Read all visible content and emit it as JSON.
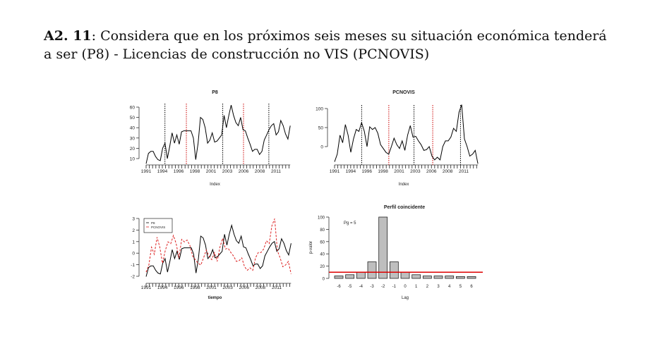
{
  "heading": {
    "number": "A2. 11",
    "text": ": Considera que en los próximos seis meses su situación económica tenderá a ser (P8) - Licencias de construcción no VIS (PCNOVIS)"
  },
  "chart_data": [
    {
      "type": "line",
      "title": "P8",
      "xlabel": "Index",
      "ylabel": "",
      "xticks": [
        "1991",
        "1994",
        "1996",
        "1998",
        "2001",
        "2003",
        "2006",
        "2008",
        "2011"
      ],
      "yticks": [
        10,
        20,
        30,
        40,
        50,
        60
      ],
      "xlim": [
        1991,
        2013.2
      ],
      "series": [
        {
          "name": "P8",
          "color": "#000000",
          "values": [
            5,
            15,
            17,
            17,
            12,
            9,
            8,
            20,
            25,
            10,
            22,
            35,
            25,
            33,
            24,
            36,
            37,
            37,
            37,
            37,
            30,
            9,
            25,
            50,
            48,
            40,
            25,
            28,
            35,
            26,
            27,
            30,
            33,
            52,
            40,
            52,
            62,
            52,
            45,
            42,
            50,
            38,
            37,
            30,
            24,
            17,
            19,
            19,
            14,
            17,
            28,
            33,
            38,
            42,
            44,
            33,
            36,
            47,
            42,
            34,
            29,
            42
          ]
        }
      ],
      "vlines": [
        {
          "x": 1993.9,
          "color": "#000000"
        },
        {
          "x": 1997.2,
          "color": "#cc0000"
        },
        {
          "x": 2002.8,
          "color": "#000000"
        },
        {
          "x": 2006.0,
          "color": "#cc0000"
        },
        {
          "x": 2009.9,
          "color": "#000000"
        }
      ]
    },
    {
      "type": "line",
      "title": "PCNOVIS",
      "xlabel": "Index",
      "ylabel": "",
      "xticks": [
        "1991",
        "1994",
        "1996",
        "1998",
        "2001",
        "2003",
        "2006",
        "2008",
        "2011"
      ],
      "yticks": [
        0,
        50,
        100
      ],
      "xlim": [
        1991,
        2013.2
      ],
      "series": [
        {
          "name": "PCNOVIS",
          "color": "#000000",
          "values": [
            -40,
            -20,
            30,
            10,
            58,
            30,
            -15,
            20,
            45,
            40,
            63,
            40,
            0,
            52,
            45,
            50,
            35,
            5,
            -5,
            -15,
            -20,
            0,
            22,
            5,
            -5,
            15,
            -10,
            30,
            55,
            25,
            27,
            15,
            5,
            -10,
            -8,
            0,
            -25,
            -35,
            -28,
            -35,
            0,
            15,
            15,
            25,
            48,
            40,
            90,
            110,
            20,
            0,
            -25,
            -20,
            -10,
            -45
          ]
        }
      ],
      "vlines": [
        {
          "x": 1995.2,
          "color": "#000000"
        },
        {
          "x": 1999.4,
          "color": "#cc0000"
        },
        {
          "x": 2003.3,
          "color": "#000000"
        },
        {
          "x": 2006.2,
          "color": "#cc0000"
        },
        {
          "x": 2010.5,
          "color": "#000000"
        }
      ]
    },
    {
      "type": "line",
      "title": "",
      "xlabel": "tiempo",
      "ylabel": "",
      "xticks": [
        "1991",
        "1994",
        "1996",
        "1998",
        "2001",
        "2003",
        "2006",
        "2008",
        "2011"
      ],
      "yticks": [
        -2,
        -1,
        0,
        1,
        2,
        3
      ],
      "xlim": [
        1991,
        2013.2
      ],
      "standardized": true,
      "legend": [
        "P8",
        "PCNOVIS"
      ],
      "legend_position": "top-left",
      "series": [
        {
          "name": "P8",
          "color": "#000000",
          "source": 0
        },
        {
          "name": "PCNOVIS",
          "color": "#dd2222",
          "source": 1,
          "dashed": true
        }
      ]
    },
    {
      "type": "bar",
      "title": "Perfil coincidente",
      "xlabel": "Lag",
      "ylabel": "p-valor",
      "annotation": "Pg = 5",
      "categories": [
        "-6",
        "-5",
        "-4",
        "-3",
        "-2",
        "-1",
        "0",
        "1",
        "2",
        "3",
        "4",
        "5",
        "6"
      ],
      "values": [
        4,
        6,
        10,
        27,
        100,
        27,
        10,
        6,
        4,
        4,
        4,
        3,
        3
      ],
      "yticks": [
        0,
        20,
        40,
        60,
        80,
        100
      ],
      "ylim": [
        0,
        100
      ],
      "hline": 10,
      "hline_color": "#dd0000"
    }
  ]
}
